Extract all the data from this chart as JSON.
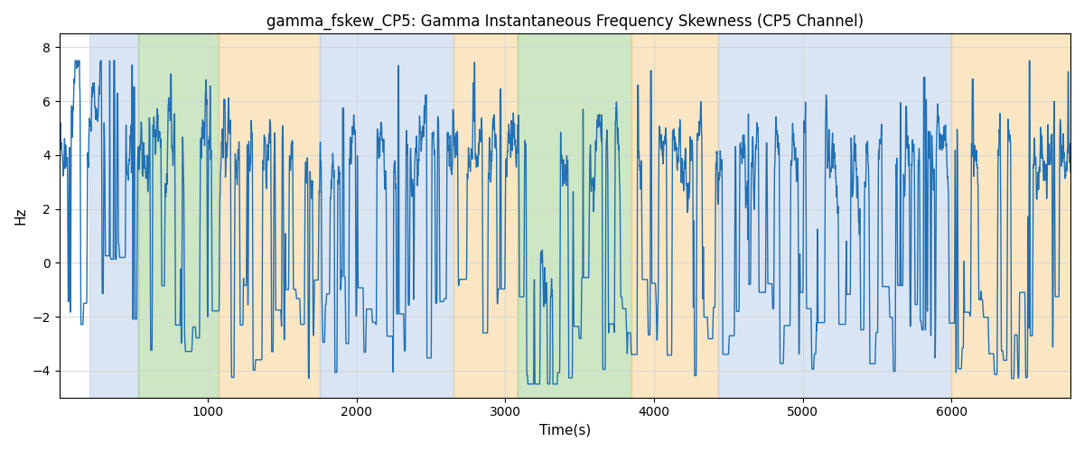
{
  "title": "gamma_fskew_CP5: Gamma Instantaneous Frequency Skewness (CP5 Channel)",
  "xlabel": "Time(s)",
  "ylabel": "Hz",
  "ylim": [
    -5.0,
    8.5
  ],
  "xlim": [
    0,
    6800
  ],
  "yticks": [
    -4,
    -2,
    0,
    2,
    4,
    6,
    8
  ],
  "xticks": [
    1000,
    2000,
    3000,
    4000,
    5000,
    6000
  ],
  "line_color": "#2070b4",
  "line_width": 1.0,
  "bg_regions": [
    {
      "xmin": 200,
      "xmax": 530,
      "color": "#AEC6E8",
      "alpha": 0.45
    },
    {
      "xmin": 530,
      "xmax": 1070,
      "color": "#90C87A",
      "alpha": 0.45
    },
    {
      "xmin": 1070,
      "xmax": 1750,
      "color": "#F5C87A",
      "alpha": 0.45
    },
    {
      "xmin": 1750,
      "xmax": 2650,
      "color": "#AEC6E8",
      "alpha": 0.45
    },
    {
      "xmin": 2650,
      "xmax": 3080,
      "color": "#F5C87A",
      "alpha": 0.45
    },
    {
      "xmin": 3080,
      "xmax": 3850,
      "color": "#90C87A",
      "alpha": 0.45
    },
    {
      "xmin": 3850,
      "xmax": 4430,
      "color": "#F5C87A",
      "alpha": 0.45
    },
    {
      "xmin": 4430,
      "xmax": 6000,
      "color": "#AEC6E8",
      "alpha": 0.45
    },
    {
      "xmin": 6000,
      "xmax": 6800,
      "color": "#F5C87A",
      "alpha": 0.45
    }
  ],
  "n_points": 6800,
  "seed": 123,
  "title_fontsize": 12,
  "label_fontsize": 11
}
